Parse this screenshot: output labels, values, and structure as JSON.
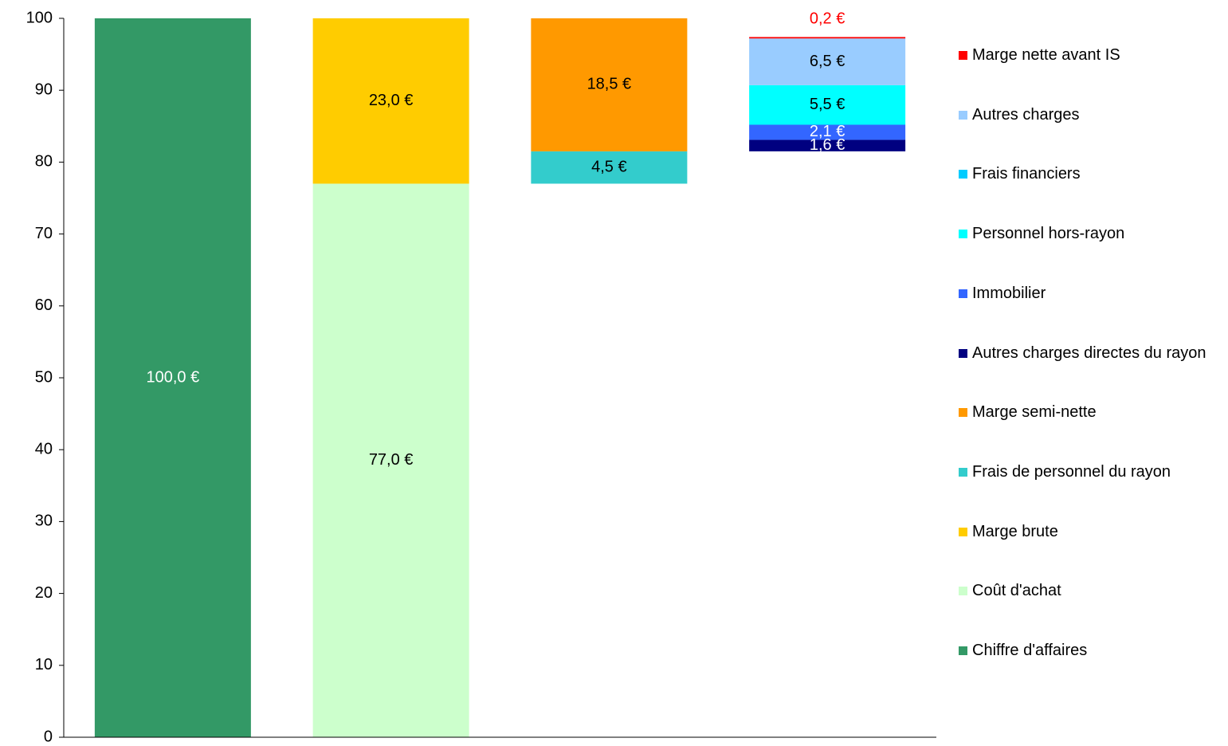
{
  "chart_data": {
    "type": "bar",
    "stacked": true,
    "waterfall": true,
    "categories": [
      null,
      null,
      null,
      null
    ],
    "series": [
      {
        "name": "Chiffre d'affaires",
        "color": "#339966",
        "label_color": "#ffffff",
        "values": [
          100,
          null,
          null,
          null
        ],
        "value_labels": [
          "100,0 €",
          null,
          null,
          null
        ]
      },
      {
        "name": "Coût d'achat",
        "color": "#ccffcc",
        "label_color": "#000000",
        "values": [
          null,
          77,
          null,
          null
        ],
        "value_labels": [
          null,
          "77,0 €",
          null,
          null
        ]
      },
      {
        "name": "Marge brute",
        "color": "#ffcc00",
        "label_color": "#000000",
        "values": [
          null,
          23,
          null,
          null
        ],
        "value_labels": [
          null,
          "23,0 €",
          null,
          null
        ]
      },
      {
        "name": "Frais de personnel du rayon",
        "color": "#33cccc",
        "label_color": "#000000",
        "values": [
          null,
          null,
          4.5,
          null
        ],
        "value_labels": [
          null,
          null,
          "4,5 €",
          null
        ]
      },
      {
        "name": "Marge semi-nette",
        "color": "#ff9900",
        "label_color": "#000000",
        "values": [
          null,
          null,
          18.5,
          null
        ],
        "value_labels": [
          null,
          null,
          "18,5 €",
          null
        ]
      },
      {
        "name": "Autres charges directes du rayon",
        "color": "#000080",
        "label_color": "#ffffff",
        "values": [
          null,
          null,
          null,
          1.6
        ],
        "value_labels": [
          null,
          null,
          null,
          "1,6 €"
        ]
      },
      {
        "name": "Immobilier",
        "color": "#3366ff",
        "label_color": "#ffffff",
        "values": [
          null,
          null,
          null,
          2.1
        ],
        "value_labels": [
          null,
          null,
          null,
          "2,1 €"
        ]
      },
      {
        "name": "Personnel hors-rayon",
        "color": "#00ffff",
        "label_color": "#000000",
        "values": [
          null,
          null,
          null,
          5.5
        ],
        "value_labels": [
          null,
          null,
          null,
          "5,5 €"
        ]
      },
      {
        "name": "Frais financiers",
        "color": "#00ccff",
        "label_color": "#000000",
        "values": [
          null,
          null,
          null,
          null
        ],
        "value_labels": [
          null,
          null,
          null,
          null
        ]
      },
      {
        "name": "Autres charges",
        "color": "#99ccff",
        "label_color": "#000000",
        "values": [
          null,
          null,
          null,
          6.5
        ],
        "value_labels": [
          null,
          null,
          null,
          "6,5 €"
        ]
      },
      {
        "name": "Marge nette avant IS",
        "color": "#ff0000",
        "label_color": "#ff0000",
        "label_outside": true,
        "values": [
          null,
          null,
          null,
          0.2
        ],
        "value_labels": [
          null,
          null,
          null,
          "0,2 €"
        ]
      }
    ],
    "ylim": [
      0,
      100
    ],
    "yticks": [
      0,
      10,
      20,
      30,
      40,
      50,
      60,
      70,
      80,
      90,
      100
    ],
    "grid": false,
    "legend": "right",
    "legend_order": "reversed"
  }
}
